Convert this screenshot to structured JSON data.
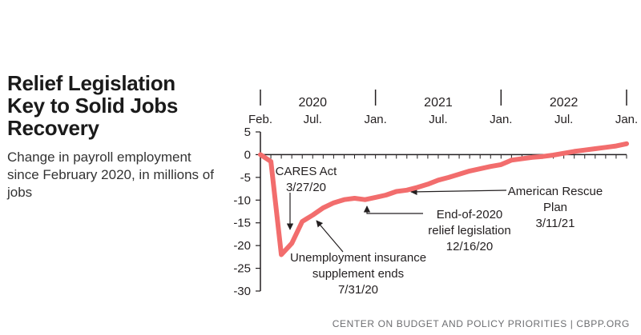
{
  "header": {
    "title": "Relief Legislation Key to Solid Jobs Recovery",
    "subtitle": "Change in payroll employment since February 2020, in millions of jobs"
  },
  "footer": {
    "source": "CENTER ON BUDGET AND POLICY PRIORITIES | CBPP.ORG"
  },
  "chart_data": {
    "type": "line",
    "title": "Relief Legislation Key to Solid Jobs Recovery",
    "subtitle": "Change in payroll employment since February 2020, in millions of jobs",
    "xlabel": "",
    "ylabel": "",
    "ylim": [
      -30,
      5
    ],
    "yticks": [
      5,
      0,
      -5,
      -10,
      -15,
      -20,
      -25,
      -30
    ],
    "ytick_labels": [
      "5",
      "0",
      "-5",
      "-10",
      "-15",
      "-20",
      "-25",
      "-30"
    ],
    "xlim": [
      "2020-02",
      "2023-01"
    ],
    "month_labels": [
      {
        "month": "2020-02",
        "label": "Feb."
      },
      {
        "month": "2020-07",
        "label": "Jul."
      },
      {
        "month": "2021-01",
        "label": "Jan."
      },
      {
        "month": "2021-07",
        "label": "Jul."
      },
      {
        "month": "2022-01",
        "label": "Jan."
      },
      {
        "month": "2022-07",
        "label": "Jul."
      },
      {
        "month": "2023-01",
        "label": "Jan."
      }
    ],
    "year_labels": [
      {
        "month": "2020-07",
        "label": "2020"
      },
      {
        "month": "2021-07",
        "label": "2021"
      },
      {
        "month": "2022-07",
        "label": "2022"
      }
    ],
    "year_dividers": [
      "2021-01",
      "2022-01",
      "2023-01"
    ],
    "grid": false,
    "legend": "none",
    "line_color": "#f26d6d",
    "series": [
      {
        "name": "",
        "points": [
          {
            "x": "2020-02",
            "y": 0
          },
          {
            "x": "2020-03",
            "y": -1.5
          },
          {
            "x": "2020-04",
            "y": -22.0
          },
          {
            "x": "2020-05",
            "y": -19.5
          },
          {
            "x": "2020-06",
            "y": -14.7
          },
          {
            "x": "2020-07",
            "y": -13.3
          },
          {
            "x": "2020-08",
            "y": -11.7
          },
          {
            "x": "2020-09",
            "y": -10.6
          },
          {
            "x": "2020-10",
            "y": -9.9
          },
          {
            "x": "2020-11",
            "y": -9.6
          },
          {
            "x": "2020-12",
            "y": -9.9
          },
          {
            "x": "2021-01",
            "y": -9.4
          },
          {
            "x": "2021-02",
            "y": -8.9
          },
          {
            "x": "2021-03",
            "y": -8.1
          },
          {
            "x": "2021-04",
            "y": -7.8
          },
          {
            "x": "2021-05",
            "y": -7.2
          },
          {
            "x": "2021-06",
            "y": -6.5
          },
          {
            "x": "2021-07",
            "y": -5.6
          },
          {
            "x": "2021-08",
            "y": -5.0
          },
          {
            "x": "2021-09",
            "y": -4.3
          },
          {
            "x": "2021-10",
            "y": -3.6
          },
          {
            "x": "2021-11",
            "y": -3.1
          },
          {
            "x": "2021-12",
            "y": -2.6
          },
          {
            "x": "2022-01",
            "y": -2.2
          },
          {
            "x": "2022-02",
            "y": -1.2
          },
          {
            "x": "2022-03",
            "y": -0.9
          },
          {
            "x": "2022-04",
            "y": -0.6
          },
          {
            "x": "2022-05",
            "y": -0.4
          },
          {
            "x": "2022-06",
            "y": -0.1
          },
          {
            "x": "2022-07",
            "y": 0.3
          },
          {
            "x": "2022-08",
            "y": 0.7
          },
          {
            "x": "2022-09",
            "y": 1.0
          },
          {
            "x": "2022-10",
            "y": 1.3
          },
          {
            "x": "2022-11",
            "y": 1.6
          },
          {
            "x": "2022-12",
            "y": 1.9
          },
          {
            "x": "2023-01",
            "y": 2.4
          }
        ]
      }
    ],
    "annotations": [
      {
        "lines": [
          "CARES Act",
          "3/27/20"
        ],
        "date": "2020-03"
      },
      {
        "lines": [
          "Unemployment insurance",
          "supplement ends",
          "7/31/20"
        ],
        "date": "2020-07"
      },
      {
        "lines": [
          "End-of-2020",
          "relief legislation",
          "12/16/20"
        ],
        "date": "2020-12"
      },
      {
        "lines": [
          "American Rescue",
          "Plan",
          "3/11/21"
        ],
        "date": "2021-03"
      }
    ]
  }
}
